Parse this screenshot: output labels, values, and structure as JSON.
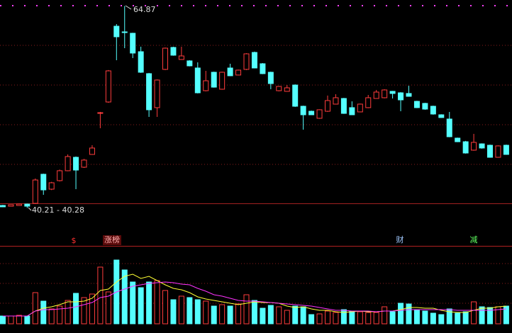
{
  "chart_data": {
    "type": "candlestick",
    "up_color": "#ff3c3c",
    "down_color": "#54ffff",
    "ylim": [
      40,
      65.6
    ],
    "open": [
      40.52,
      40.43,
      40.52,
      40.69,
      40.78,
      44.33,
      42.51,
      43.55,
      44.76,
      46.4,
      45.19,
      46.75,
      51.76,
      53.15,
      62.4,
      61.71,
      61.54,
      59.29,
      56.61,
      52.46,
      57.13,
      59.81,
      58.34,
      58.17,
      57.3,
      54.53,
      56.78,
      54.71,
      57.3,
      56.44,
      57.13,
      59.2,
      57.82,
      56.78,
      54.53,
      54.45,
      55.22,
      52.63,
      52.02,
      51.16,
      52.02,
      52.89,
      53.58,
      52.46,
      51.94,
      52.46,
      53.58,
      53.67,
      54.45,
      54.27,
      54.19,
      53.23,
      52.98,
      52.63,
      51.59,
      51.07,
      48.74,
      48.3,
      47.27,
      48.04,
      47.87,
      46.4,
      47.87
    ],
    "high": [
      40.6,
      40.65,
      40.75,
      40.75,
      43.81,
      44.4,
      43.4,
      44.9,
      46.75,
      46.5,
      46.2,
      47.87,
      51.94,
      57.05,
      62.66,
      64.87,
      61.6,
      59.9,
      56.7,
      55.9,
      59.8,
      59.9,
      59.9,
      58.25,
      57.99,
      56.95,
      56.85,
      56.85,
      57.82,
      57.1,
      59.1,
      59.3,
      57.9,
      56.85,
      55.1,
      55.22,
      55.3,
      52.7,
      52.1,
      52.25,
      53.93,
      54.1,
      53.65,
      53.23,
      52.95,
      54.01,
      54.62,
      54.7,
      54.5,
      54.35,
      55.14,
      53.3,
      53.05,
      52.7,
      51.65,
      51.94,
      48.8,
      48.4,
      49.26,
      48.1,
      47.95,
      47.85,
      47.95
    ],
    "low": [
      40.3,
      40.4,
      40.48,
      40.21,
      40.7,
      41.82,
      42.4,
      43.45,
      44.7,
      42.51,
      45.1,
      46.7,
      49.95,
      53.05,
      58.25,
      59.72,
      58.51,
      56.7,
      51.33,
      51.33,
      57.05,
      58.8,
      58.3,
      57.5,
      54.2,
      54.45,
      54.9,
      54.65,
      56.3,
      56.4,
      57.05,
      57.25,
      56.55,
      54.71,
      54.45,
      54.4,
      52.55,
      49.77,
      51.55,
      51.1,
      51.95,
      52.85,
      51.7,
      51.55,
      51.9,
      52.4,
      53.55,
      53.6,
      53.58,
      52.02,
      53.8,
      52.4,
      52.2,
      51.6,
      51.2,
      48.85,
      48.25,
      46.85,
      47.2,
      47.45,
      46.35,
      46.35,
      46.7
    ],
    "close": [
      40.35,
      40.61,
      40.69,
      40.43,
      43.63,
      42.42,
      43.29,
      44.76,
      46.49,
      44.84,
      46.06,
      47.53,
      51.85,
      56.95,
      61.11,
      61.63,
      59.12,
      56.78,
      52.2,
      55.83,
      59.72,
      58.86,
      58.77,
      57.56,
      54.27,
      55.74,
      54.96,
      56.78,
      56.35,
      57.04,
      59.03,
      57.3,
      56.61,
      55.4,
      55.05,
      54.88,
      52.63,
      51.59,
      51.59,
      52.2,
      53.32,
      53.67,
      51.76,
      51.59,
      52.89,
      53.67,
      54.36,
      54.62,
      54.19,
      53.41,
      53.84,
      52.46,
      52.28,
      51.68,
      51.25,
      48.91,
      48.3,
      46.92,
      48.22,
      47.53,
      46.4,
      47.79,
      46.75
    ],
    "volume": {
      "ylim": [
        0,
        107
      ],
      "values": [
        11,
        11,
        12,
        11,
        44,
        32,
        21,
        25,
        33,
        43,
        37,
        42,
        80,
        45,
        90,
        76,
        59,
        51,
        59,
        61,
        47,
        34,
        39,
        37,
        34,
        32,
        25,
        27,
        25,
        28,
        41,
        33,
        22,
        26,
        24,
        19,
        25,
        24,
        13,
        14,
        18,
        16,
        20,
        18,
        17,
        16,
        16,
        24,
        17,
        29,
        28,
        19,
        18,
        15,
        13,
        21,
        15,
        17,
        31,
        24,
        23,
        24,
        25
      ],
      "ma": [
        {
          "color": "#ffff33",
          "values": [
            11,
            11,
            11,
            11,
            18,
            22,
            24,
            27,
            31,
            31,
            32,
            36,
            47,
            49,
            59,
            67,
            70,
            64,
            67,
            61,
            55,
            50,
            48,
            44,
            38,
            35,
            33,
            31,
            29,
            27,
            29,
            31,
            30,
            30,
            29,
            25,
            23,
            24,
            21,
            19,
            19,
            17,
            16,
            17,
            18,
            17,
            17,
            18,
            18,
            20,
            23,
            23,
            22,
            22,
            19,
            17,
            16,
            16,
            19,
            22,
            22,
            24,
            25
          ]
        },
        {
          "color": "#ff33ff",
          "values": [
            11,
            11,
            11,
            11,
            18,
            20,
            20,
            21,
            22,
            24,
            27,
            30,
            37,
            39,
            45,
            49,
            53,
            55,
            57,
            58,
            59,
            58,
            56,
            55,
            50,
            46,
            41,
            39,
            36,
            33,
            32,
            32,
            31,
            30,
            29,
            28,
            27,
            26,
            25,
            23,
            21,
            19,
            19,
            18,
            18,
            18,
            17,
            18,
            18,
            19,
            20,
            20,
            20,
            20,
            20,
            20,
            19,
            19,
            19,
            19,
            19,
            20,
            21
          ]
        }
      ]
    },
    "annotations": [
      "64.87",
      "40.21 - 40.28"
    ],
    "markers": [
      {
        "text": "$",
        "color": "#ff3030"
      },
      {
        "text": "涨榜",
        "color": "#ffb0b0"
      },
      {
        "text": "财",
        "color": "#a0c8ff"
      },
      {
        "text": "减",
        "color": "#60ff60"
      }
    ]
  }
}
